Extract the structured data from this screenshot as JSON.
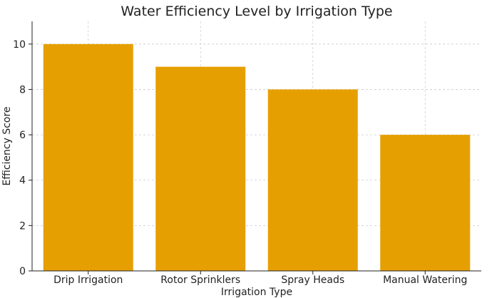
{
  "chart_data": {
    "type": "bar",
    "title": "Water Efficiency Level by Irrigation Type",
    "xlabel": "Irrigation Type",
    "ylabel": "Efficiency Score",
    "categories": [
      "Drip Irrigation",
      "Rotor Sprinklers",
      "Spray Heads",
      "Manual Watering"
    ],
    "values": [
      10,
      9,
      8,
      6
    ],
    "ylim": [
      0,
      11
    ],
    "yticks": [
      "0",
      "2",
      "4",
      "6",
      "8",
      "10"
    ],
    "grid": true,
    "bar_color": "#E69F00",
    "grid_color": "#cccccc"
  }
}
